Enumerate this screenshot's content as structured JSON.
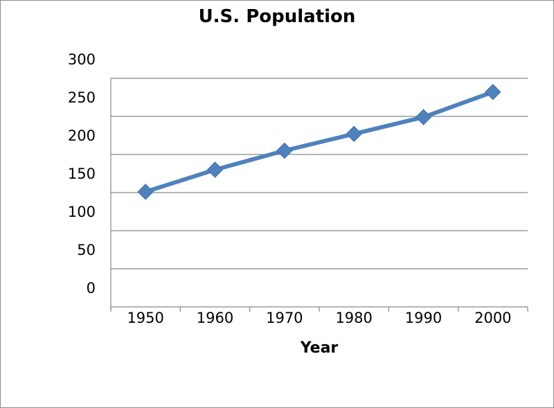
{
  "chart_data": {
    "type": "line",
    "title": "U.S. Population",
    "xlabel": "Year",
    "ylabel": "",
    "categories": [
      "1950",
      "1960",
      "1970",
      "1980",
      "1990",
      "2000"
    ],
    "series": [
      {
        "values": [
          151,
          180,
          205,
          227,
          249,
          282
        ]
      }
    ],
    "ylim": [
      0,
      300
    ],
    "yticks": [
      "0",
      "50",
      "100",
      "150",
      "200",
      "250",
      "300"
    ],
    "grid": true,
    "legend": "none",
    "colors": {
      "line": "#4F81BD",
      "marker": "#4F81BD",
      "grid": "#868686"
    }
  }
}
